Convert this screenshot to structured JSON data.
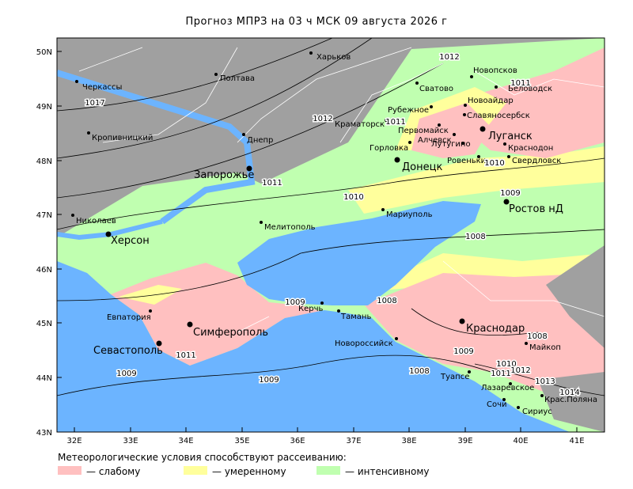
{
  "title": "Прогноз МПРЗ на 03 ч МСК 09 августа 2026 г",
  "lat_labels": [
    "50N",
    "49N",
    "48N",
    "47N",
    "46N",
    "45N",
    "44N",
    "43N"
  ],
  "lon_labels": [
    "32E",
    "33E",
    "34E",
    "35E",
    "36E",
    "37E",
    "38E",
    "39E",
    "40E",
    "41E"
  ],
  "cities": [
    {
      "name": "Харьков"
    },
    {
      "name": "Полтава"
    },
    {
      "name": "Черкассы"
    },
    {
      "name": "Кропивницкий"
    },
    {
      "name": "Днепр"
    },
    {
      "name": "Запорожье"
    },
    {
      "name": "Николаев"
    },
    {
      "name": "Херсон"
    },
    {
      "name": "Мелитополь"
    },
    {
      "name": "Мариуполь"
    },
    {
      "name": "Донецк"
    },
    {
      "name": "Горловка"
    },
    {
      "name": "Краматорск"
    },
    {
      "name": "Рубежное"
    },
    {
      "name": "Сватово"
    },
    {
      "name": "Новопсков"
    },
    {
      "name": "Беловодск"
    },
    {
      "name": "Новоайдар"
    },
    {
      "name": "Славяносербск"
    },
    {
      "name": "Первомайск"
    },
    {
      "name": "Алчевск"
    },
    {
      "name": "Лутугино"
    },
    {
      "name": "Луганск"
    },
    {
      "name": "Краснодон"
    },
    {
      "name": "Ровеньки"
    },
    {
      "name": "Свердловск"
    },
    {
      "name": "Ростов нД"
    },
    {
      "name": "Евпатория"
    },
    {
      "name": "Симферополь"
    },
    {
      "name": "Севастополь"
    },
    {
      "name": "Керчь"
    },
    {
      "name": "Тамань"
    },
    {
      "name": "Новороссийск"
    },
    {
      "name": "Краснодар"
    },
    {
      "name": "Майкоп"
    },
    {
      "name": "Туапсе"
    },
    {
      "name": "Лазаревское"
    },
    {
      "name": "Сочи"
    },
    {
      "name": "Крас.Поляна"
    },
    {
      "name": "Сириус"
    }
  ],
  "isobars": [
    1017,
    1012,
    1012,
    1011,
    1011,
    1011,
    1010,
    1010,
    1009,
    1008,
    1009,
    1008,
    1011,
    1009,
    1009,
    1008,
    1009,
    1008,
    1010,
    1011,
    1012,
    1013,
    1014
  ],
  "legend": {
    "caption": "Метеорологические условия способствуют рассеиванию:",
    "items": [
      {
        "label": "— слабому",
        "color": "#ffc0c0"
      },
      {
        "label": "— умеренному",
        "color": "#ffff9c"
      },
      {
        "label": "— интенсивному",
        "color": "#c0ffb0"
      }
    ]
  }
}
